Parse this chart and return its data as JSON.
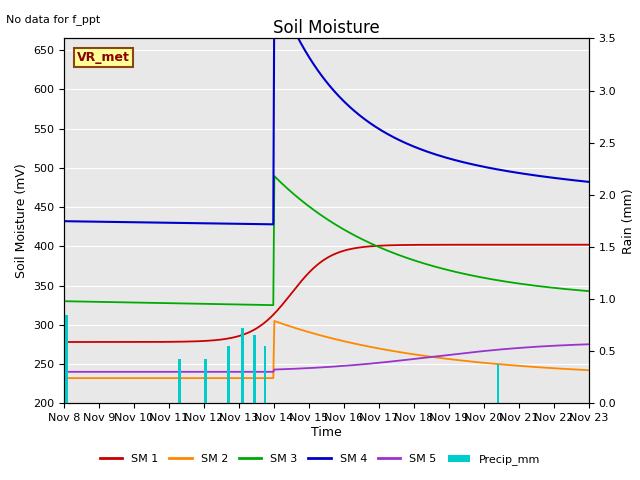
{
  "title": "Soil Moisture",
  "top_left_text": "No data for f_ppt",
  "ylabel_left": "Soil Moisture (mV)",
  "ylabel_right": "Rain (mm)",
  "xlabel": "Time",
  "ylim_left": [
    200,
    665
  ],
  "ylim_right": [
    0.0,
    3.5
  ],
  "yticks_left": [
    200,
    250,
    300,
    350,
    400,
    450,
    500,
    550,
    600,
    650
  ],
  "yticks_right": [
    0.0,
    0.5,
    1.0,
    1.5,
    2.0,
    2.5,
    3.0,
    3.5
  ],
  "background_color": "#e8e8e8",
  "fig_background": "#ffffff",
  "label_box": {
    "text": "VR_met",
    "facecolor": "#ffff99",
    "edgecolor": "#8B4513",
    "textcolor": "#8B0000"
  },
  "series": {
    "SM1": {
      "color": "#cc0000",
      "label": "SM 1"
    },
    "SM2": {
      "color": "#ff8800",
      "label": "SM 2"
    },
    "SM3": {
      "color": "#00aa00",
      "label": "SM 3"
    },
    "SM4": {
      "color": "#0000cc",
      "label": "SM 4"
    },
    "SM5": {
      "color": "#9933cc",
      "label": "SM 5"
    },
    "Precip": {
      "color": "#00cccc",
      "label": "Precip_mm"
    }
  },
  "tick_labels": [
    "Nov 8",
    "Nov 9",
    "Nov 10",
    "Nov 11",
    "Nov 12",
    "Nov 13",
    "Nov 14",
    "Nov 15",
    "Nov 16",
    "Nov 17",
    "Nov 18",
    "Nov 19",
    "Nov 20",
    "Nov 21",
    "Nov 22",
    "Nov 23"
  ],
  "precip_days": [
    0.08,
    3.3,
    4.05,
    4.7,
    5.1,
    5.45,
    5.75,
    12.4
  ],
  "precip_vals": [
    0.85,
    0.42,
    0.42,
    0.55,
    0.72,
    0.65,
    0.55,
    0.38
  ],
  "precip_widths": [
    0.09,
    0.07,
    0.07,
    0.07,
    0.08,
    0.08,
    0.07,
    0.07
  ],
  "event_day": 6.0,
  "n_points": 500
}
